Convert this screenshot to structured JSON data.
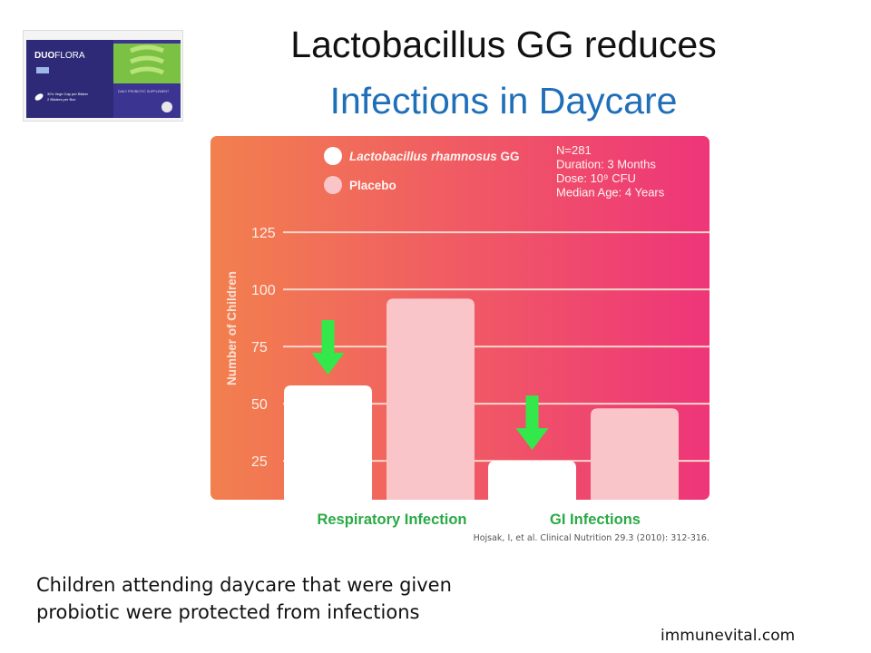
{
  "slide": {
    "title_line1": "Lactobacillus GG reduces",
    "title_line2": "Infections in Daycare",
    "caption_line1": "Children attending daycare that were given",
    "caption_line2": "probiotic were protected from infections",
    "website": "immunevital.com",
    "citation": "Hojsak, I, et al. Clinical Nutrition 29.3 (2010): 312-316."
  },
  "product": {
    "brand_prefix": "DUO",
    "brand_suffix": "FLORA",
    "small_text_1": "30's Vege Cap per Blister",
    "small_text_2": "2 Blisters per Box",
    "small_text_3": "DAILY PROBIOTIC SUPPLEMENT",
    "icon": "capsule-icon"
  },
  "chart_data": {
    "type": "bar",
    "categories": [
      "Respiratory Infection",
      "GI Infections"
    ],
    "series": [
      {
        "name": "Lactobacillus rhamnosus GG",
        "values": [
          58,
          25
        ],
        "color": "#ffffff"
      },
      {
        "name": "Placebo",
        "values": [
          96,
          48
        ],
        "color": "#f9c5c9"
      }
    ],
    "ylabel": "Number of Children",
    "yticks": [
      25,
      50,
      75,
      100,
      125
    ],
    "ylim": [
      8,
      133
    ],
    "grid": true,
    "legend": "top-left",
    "info_box": [
      "N=281",
      "Duration: 3 Months",
      "Dose: 10⁹ CFU",
      "Median Age: 4 Years"
    ],
    "annotations": [
      {
        "type": "down-arrow",
        "category": "Respiratory Infection",
        "color": "#33e84a"
      },
      {
        "type": "down-arrow",
        "category": "GI Infections",
        "color": "#33e84a"
      }
    ],
    "colors": {
      "gradient_start": "#f2804e",
      "gradient_end": "#ee3579",
      "category_label": "#2aa945",
      "grid": "#f8d6cc"
    }
  }
}
